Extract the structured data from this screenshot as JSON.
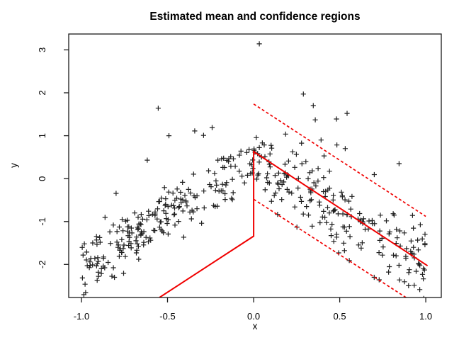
{
  "title": "Estimated mean and confidence regions",
  "chart_data": {
    "type": "scatter",
    "title": "Estimated mean and confidence regions",
    "xlabel": "x",
    "ylabel": "y",
    "xlim": [
      -1.074,
      1.09
    ],
    "ylim": [
      -2.77,
      3.37
    ],
    "x_ticks": [
      -1.0,
      -0.5,
      0.0,
      0.5,
      1.0
    ],
    "x_tick_labels": [
      "-1.0",
      "-0.5",
      "0.0",
      "0.5",
      "1.0"
    ],
    "y_ticks": [
      -2,
      -1,
      0,
      1,
      2,
      3
    ],
    "y_tick_labels": [
      "-2",
      "-1",
      "0",
      "1",
      "2",
      "3"
    ],
    "grid": "off",
    "legend": "none",
    "marker": "+",
    "point_color": "#000000",
    "line_color": "#f00000",
    "frame_color": "#1a1a1a",
    "scatter": {
      "description": "about 450 points, tent-shaped mean peaking near x=0, noisy with upward outliers",
      "n_random": 430,
      "seed": 11,
      "x_range": [
        -1,
        1
      ],
      "mean_fn": "y = 0.45 - 2.55*abs(x)",
      "mean_intercept": 0.45,
      "mean_slope_abs": -2.55,
      "noise_sd_left": 0.3,
      "noise_sd_right": 0.42,
      "upper_tail_fraction": 0.04,
      "upper_tail_range": [
        0.6,
        1.6
      ],
      "outlier_points": [
        [
          0.033,
          3.14
        ],
        [
          0.289,
          1.97
        ],
        [
          -0.554,
          1.64
        ],
        [
          0.543,
          1.52
        ],
        [
          0.481,
          1.39
        ],
        [
          0.358,
          1.37
        ],
        [
          -0.492,
          1.0
        ],
        [
          -0.342,
          1.11
        ],
        [
          -0.241,
          1.19
        ],
        [
          0.845,
          0.35
        ],
        [
          0.532,
          0.7
        ],
        [
          0.409,
          0.53
        ]
      ]
    },
    "lines": [
      {
        "name": "estimated-mean",
        "style": "solid",
        "width": 2,
        "points": [
          [
            -0.547,
            -2.77
          ],
          [
            0,
            -1.34
          ],
          [
            0,
            0.63
          ],
          [
            1.01,
            -2.03
          ]
        ]
      },
      {
        "name": "upper-confidence-band",
        "style": "dashed",
        "width": 1.7,
        "points": [
          [
            0,
            1.74
          ],
          [
            1.0,
            -0.88
          ]
        ]
      },
      {
        "name": "lower-confidence-band",
        "style": "dashed",
        "width": 1.7,
        "points": [
          [
            0,
            -0.48
          ],
          [
            0.885,
            -2.77
          ]
        ]
      }
    ]
  }
}
